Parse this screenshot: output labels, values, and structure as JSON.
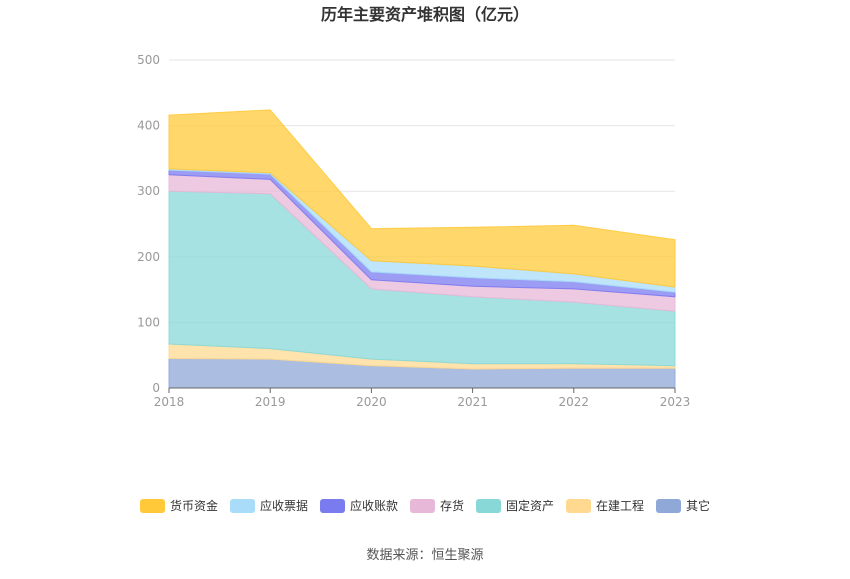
{
  "chart_data": {
    "type": "area",
    "stacked": true,
    "title": "历年主要资产堆积图（亿元）",
    "x": [
      "2018",
      "2019",
      "2020",
      "2021",
      "2022",
      "2023"
    ],
    "ylim": [
      0,
      500
    ],
    "yticks": [
      0,
      100,
      200,
      300,
      400,
      500
    ],
    "grid": true,
    "legend_position": "bottom",
    "series": [
      {
        "name": "其它",
        "color": "#8fa8d8",
        "values": [
          45,
          44,
          34,
          29,
          30,
          30
        ]
      },
      {
        "name": "在建工程",
        "color": "#ffd990",
        "values": [
          22,
          16,
          10,
          8,
          7,
          4
        ]
      },
      {
        "name": "固定资产",
        "color": "#88d8d8",
        "values": [
          233,
          236,
          107,
          102,
          94,
          83
        ]
      },
      {
        "name": "存货",
        "color": "#e8b8d8",
        "values": [
          25,
          22,
          14,
          16,
          20,
          22
        ]
      },
      {
        "name": "应收账款",
        "color": "#7b7bf0",
        "values": [
          7,
          8,
          12,
          13,
          11,
          7
        ]
      },
      {
        "name": "应收票据",
        "color": "#a8dcf8",
        "values": [
          2,
          2,
          17,
          18,
          12,
          8
        ]
      },
      {
        "name": "货币资金",
        "color": "#ffc93a",
        "values": [
          82,
          96,
          49,
          59,
          74,
          72
        ]
      }
    ]
  },
  "legend_order": [
    "货币资金",
    "应收票据",
    "应收账款",
    "存货",
    "固定资产",
    "在建工程",
    "其它"
  ],
  "footer": {
    "source": "数据来源：恒生聚源"
  }
}
